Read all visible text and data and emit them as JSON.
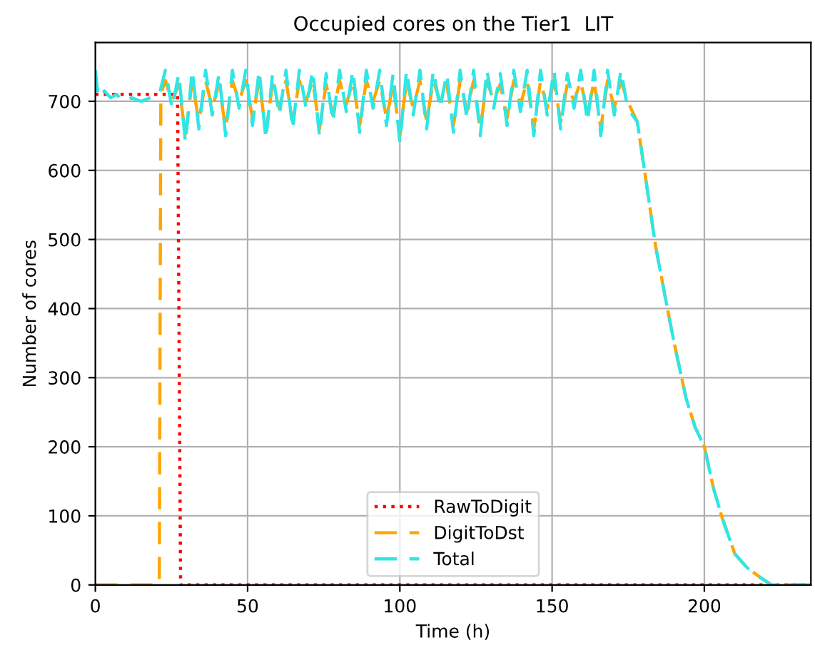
{
  "chart_data": {
    "type": "line",
    "title": "Occupied cores on the Tier1  LIT",
    "xlabel": "Time (h)",
    "ylabel": "Number of cores",
    "xlim": [
      0,
      235
    ],
    "ylim": [
      0,
      785
    ],
    "xticks": [
      0,
      50,
      100,
      150,
      200
    ],
    "yticks": [
      0,
      100,
      200,
      300,
      400,
      500,
      600,
      700
    ],
    "grid": true,
    "legend": "bottom",
    "series": [
      {
        "name": "RawToDigit",
        "color": "#ff0000",
        "line_style": "dotted",
        "x": [
          0,
          27,
          28,
          235
        ],
        "values": [
          710,
          710,
          0,
          0
        ]
      },
      {
        "name": "DigitToDst",
        "color": "#ffa500",
        "line_style": "dashed",
        "x": [
          0,
          21,
          21.5,
          23.0,
          25.2,
          27.4,
          29.6,
          31.8,
          34.0,
          36.2,
          38.4,
          40.6,
          42.8,
          45.0,
          47.2,
          49.4,
          51.6,
          53.8,
          56.0,
          58.2,
          60.4,
          62.6,
          64.8,
          67.0,
          69.2,
          71.4,
          73.6,
          75.8,
          78.0,
          80.2,
          82.4,
          84.6,
          86.8,
          89.0,
          91.2,
          93.4,
          95.6,
          97.8,
          100.0,
          102.2,
          104.4,
          106.6,
          108.8,
          111.0,
          113.2,
          115.4,
          117.6,
          119.8,
          122.0,
          124.2,
          126.4,
          128.6,
          130.8,
          133.0,
          135.2,
          137.4,
          139.6,
          141.8,
          144.0,
          146.2,
          148.4,
          150.6,
          152.8,
          155.0,
          157.2,
          159.4,
          161.6,
          163.8,
          166.0,
          168.2,
          170.4,
          172.6,
          174.8,
          178,
          181,
          184,
          187,
          190,
          194,
          197,
          200,
          203,
          206,
          210,
          214,
          218,
          222,
          235
        ],
        "values": [
          0,
          0,
          710,
          730,
          700,
          725,
          650,
          730,
          670,
          730,
          690,
          725,
          660,
          730,
          700,
          730,
          675,
          730,
          655,
          725,
          690,
          730,
          670,
          730,
          700,
          730,
          660,
          725,
          680,
          730,
          695,
          730,
          665,
          730,
          700,
          730,
          675,
          725,
          650,
          730,
          690,
          730,
          670,
          730,
          700,
          725,
          665,
          730,
          685,
          730,
          660,
          730,
          700,
          725,
          675,
          730,
          695,
          730,
          660,
          730,
          690,
          730,
          670,
          725,
          700,
          730,
          680,
          730,
          660,
          730,
          690,
          730,
          700,
          670,
          580,
          490,
          420,
          352,
          270,
          228,
          200,
          140,
          95,
          45,
          25,
          12,
          0,
          0
        ]
      },
      {
        "name": "Total",
        "color": "#2ee6e6",
        "line_style": "dashed",
        "x": [
          0,
          1,
          3,
          5,
          7,
          9,
          12,
          15,
          18,
          21,
          23.0,
          25.2,
          27.4,
          29.6,
          31.8,
          34.0,
          36.2,
          38.4,
          40.6,
          42.8,
          45.0,
          47.2,
          49.4,
          51.6,
          53.8,
          56.0,
          58.2,
          60.4,
          62.6,
          64.8,
          67.0,
          69.2,
          71.4,
          73.6,
          75.8,
          78.0,
          80.2,
          82.4,
          84.6,
          86.8,
          89.0,
          91.2,
          93.4,
          95.6,
          97.8,
          100.0,
          102.2,
          104.4,
          106.6,
          108.8,
          111.0,
          113.2,
          115.4,
          117.6,
          119.8,
          122.0,
          124.2,
          126.4,
          128.6,
          130.8,
          133.0,
          135.2,
          137.4,
          139.6,
          141.8,
          144.0,
          146.2,
          148.4,
          150.6,
          152.8,
          155.0,
          157.2,
          159.4,
          161.6,
          163.8,
          166.0,
          168.2,
          170.4,
          172.6,
          174.8,
          178,
          181,
          184,
          187,
          190,
          194,
          197,
          200,
          203,
          206,
          210,
          214,
          218,
          222,
          235
        ],
        "values": [
          745,
          705,
          715,
          705,
          710,
          700,
          705,
          700,
          705,
          710,
          745,
          690,
          740,
          640,
          745,
          660,
          745,
          680,
          740,
          650,
          745,
          690,
          745,
          665,
          745,
          645,
          740,
          680,
          745,
          660,
          745,
          690,
          745,
          650,
          740,
          670,
          745,
          685,
          745,
          655,
          745,
          690,
          745,
          665,
          740,
          640,
          745,
          680,
          745,
          660,
          745,
          690,
          740,
          655,
          745,
          675,
          745,
          650,
          745,
          690,
          740,
          665,
          745,
          685,
          745,
          650,
          745,
          680,
          745,
          660,
          740,
          690,
          745,
          670,
          745,
          650,
          745,
          680,
          745,
          690,
          670,
          580,
          490,
          420,
          352,
          270,
          228,
          200,
          140,
          95,
          45,
          25,
          12,
          0,
          0
        ]
      }
    ]
  }
}
